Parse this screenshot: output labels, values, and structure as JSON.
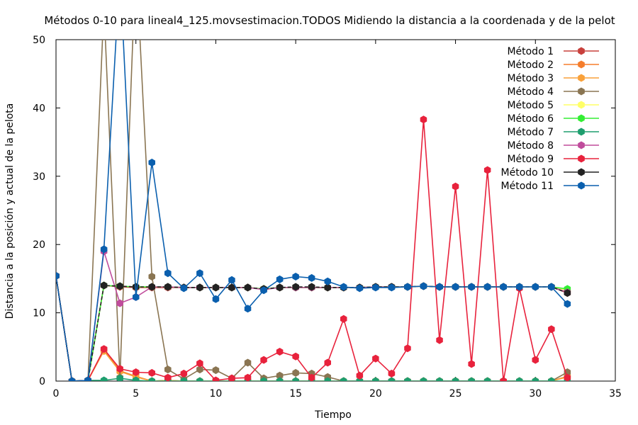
{
  "chart_data": {
    "type": "line",
    "title": "Métodos 0-10 para lineal4_125.movsestimacion.TODOS Midiendo la distancia a la coordenada y de la pelot",
    "xlabel": "Tiempo",
    "ylabel": "Distancia a la posición y actual de la pelota",
    "xlim": [
      0,
      35
    ],
    "ylim": [
      0,
      50
    ],
    "xticks": [
      0,
      5,
      10,
      15,
      20,
      25,
      30,
      35
    ],
    "yticks": [
      0,
      10,
      20,
      30,
      40,
      50
    ],
    "legend_position": "top-right",
    "grid": false,
    "series": [
      {
        "name": "Método 1",
        "color": "#c8403c",
        "x": [
          0,
          1,
          2,
          3,
          4,
          5,
          6,
          7,
          8,
          9,
          10,
          11,
          12,
          13,
          14,
          15,
          16,
          17,
          18,
          19,
          20,
          21,
          22,
          23,
          24,
          25,
          26,
          27,
          28,
          29,
          30,
          31,
          32
        ],
        "y": [
          15.4,
          0,
          0.1,
          14.0,
          13.8,
          13.7,
          13.7,
          13.7,
          13.7,
          13.7,
          13.7,
          13.7,
          13.7,
          13.5,
          13.7,
          13.7,
          13.7,
          13.7,
          13.7,
          13.7,
          13.8,
          13.8,
          13.8,
          13.9,
          13.8,
          13.8,
          13.8,
          13.8,
          13.8,
          13.8,
          13.8,
          13.8,
          12.9
        ]
      },
      {
        "name": "Método 2",
        "color": "#f57d2b",
        "x": [
          0,
          1,
          2,
          3,
          4,
          5,
          6,
          7,
          8,
          9,
          10,
          11,
          12,
          13,
          14,
          15,
          16,
          17,
          18,
          19,
          20,
          21,
          22,
          23,
          24,
          25,
          26,
          27,
          28,
          29,
          30,
          31,
          32
        ],
        "y": [
          15.4,
          0,
          0.1,
          4.6,
          1.5,
          0.7,
          0,
          0.1,
          0,
          0,
          0,
          0,
          0,
          0,
          0,
          0,
          0,
          0,
          0,
          0,
          0,
          0,
          0,
          0,
          0,
          0,
          0,
          0,
          0,
          0,
          0,
          0,
          0.7
        ]
      },
      {
        "name": "Método 3",
        "color": "#f9a13a",
        "x": [
          0,
          1,
          2,
          3,
          4,
          5,
          6,
          7,
          8,
          9,
          10,
          11,
          12,
          13,
          14,
          15,
          16,
          17,
          18,
          19,
          20,
          21,
          22,
          23,
          24,
          25,
          26,
          27,
          28,
          29,
          30,
          31,
          32
        ],
        "y": [
          15.4,
          0,
          0.1,
          4.4,
          1.4,
          0.6,
          0,
          0.1,
          0,
          0,
          0,
          0,
          0,
          0,
          0,
          0,
          0,
          0,
          0,
          0,
          0,
          0,
          0,
          0,
          0,
          0,
          0,
          0,
          0,
          0,
          0,
          0,
          0.6
        ]
      },
      {
        "name": "Método 4",
        "color": "#8a7552",
        "x": [
          0,
          1,
          2,
          3,
          4,
          5,
          6,
          7,
          8,
          9,
          10,
          11,
          12,
          13,
          14,
          15,
          16,
          17,
          18,
          19,
          20,
          21,
          22,
          23,
          24,
          25,
          26,
          27,
          28,
          29,
          30,
          31,
          32
        ],
        "y": [
          15.4,
          0,
          0.1,
          55,
          0.5,
          62,
          15.3,
          1.7,
          0.3,
          1.7,
          1.6,
          0.4,
          2.7,
          0.4,
          0.8,
          1.2,
          1.1,
          0.6,
          0,
          0,
          0,
          0,
          0,
          0,
          0,
          0,
          0,
          0,
          0,
          0,
          0,
          0,
          1.3
        ]
      },
      {
        "name": "Método 5",
        "color": "#ffff66",
        "x": [
          0,
          1,
          2,
          3,
          4,
          5,
          6,
          7,
          8,
          9,
          10,
          11,
          12,
          13,
          14,
          15,
          16,
          17,
          18,
          19,
          20,
          21,
          22,
          23,
          24,
          25,
          26,
          27,
          28,
          29,
          30,
          31,
          32
        ],
        "y": [
          15.4,
          0,
          0.1,
          14.0,
          13.9,
          13.8,
          13.8,
          13.8,
          13.7,
          13.7,
          13.7,
          13.7,
          13.7,
          13.5,
          13.7,
          13.7,
          13.7,
          13.7,
          13.7,
          13.7,
          13.8,
          13.8,
          13.8,
          13.9,
          13.8,
          13.8,
          13.8,
          13.8,
          13.8,
          13.8,
          13.8,
          13.8,
          13.3
        ]
      },
      {
        "name": "Método 6",
        "color": "#33ee33",
        "x": [
          0,
          1,
          2,
          3,
          4,
          5,
          6,
          7,
          8,
          9,
          10,
          11,
          12,
          13,
          14,
          15,
          16,
          17,
          18,
          19,
          20,
          21,
          22,
          23,
          24,
          25,
          26,
          27,
          28,
          29,
          30,
          31,
          32
        ],
        "y": [
          15.4,
          0,
          0.1,
          14.0,
          13.9,
          13.8,
          13.8,
          13.8,
          13.7,
          13.7,
          13.7,
          13.7,
          13.7,
          13.5,
          13.7,
          13.7,
          13.7,
          13.7,
          13.7,
          13.7,
          13.8,
          13.8,
          13.8,
          13.9,
          13.8,
          13.8,
          13.8,
          13.8,
          13.8,
          13.8,
          13.8,
          13.8,
          13.5
        ]
      },
      {
        "name": "Método 7",
        "color": "#1e9e6e",
        "x": [
          0,
          1,
          2,
          3,
          4,
          5,
          6,
          7,
          8,
          9,
          10,
          11,
          12,
          13,
          14,
          15,
          16,
          17,
          18,
          19,
          20,
          21,
          22,
          23,
          24,
          25,
          26,
          27,
          28,
          29,
          30,
          31,
          32
        ],
        "y": [
          15.4,
          0,
          0.1,
          0.1,
          0.4,
          0.1,
          0,
          0,
          0,
          0,
          0,
          0,
          0,
          0,
          0,
          0,
          0,
          0,
          0,
          0,
          0,
          0,
          0,
          0,
          0,
          0,
          0,
          0,
          0,
          0,
          0,
          0,
          0
        ]
      },
      {
        "name": "Método 8",
        "color": "#c04c9c",
        "x": [
          0,
          1,
          2,
          3,
          4,
          5,
          6,
          7,
          8,
          9,
          10,
          11,
          12,
          13,
          14,
          15,
          16,
          17,
          18,
          19,
          20,
          21,
          22,
          23,
          24,
          25,
          26,
          27,
          28,
          29,
          30,
          31,
          32
        ],
        "y": [
          15.4,
          0,
          0.1,
          19.0,
          11.4,
          12.3,
          13.8,
          13.8,
          13.7,
          13.7,
          13.7,
          13.7,
          13.7,
          13.4,
          13.7,
          13.7,
          13.7,
          13.7,
          13.7,
          13.7,
          13.8,
          13.8,
          13.8,
          13.9,
          13.8,
          13.8,
          13.8,
          13.8,
          13.8,
          13.8,
          13.8,
          13.8,
          13.0
        ]
      },
      {
        "name": "Método 9",
        "color": "#e8223c",
        "x": [
          0,
          1,
          2,
          3,
          4,
          5,
          6,
          7,
          8,
          9,
          10,
          11,
          12,
          13,
          14,
          15,
          16,
          17,
          18,
          19,
          20,
          21,
          22,
          23,
          24,
          25,
          26,
          27,
          28,
          29,
          30,
          31,
          32
        ],
        "y": [
          15.4,
          0,
          0.1,
          4.7,
          1.8,
          1.3,
          1.2,
          0.5,
          1.1,
          2.6,
          0.1,
          0.4,
          0.5,
          3.1,
          4.3,
          3.6,
          0.5,
          2.7,
          9.1,
          0.8,
          3.3,
          1.1,
          4.8,
          38.3,
          6.0,
          28.5,
          2.5,
          30.9,
          0,
          13.6,
          3.1,
          7.6,
          0.5
        ]
      },
      {
        "name": "Método 10",
        "color": "#222222",
        "x": [
          0,
          1,
          2,
          3,
          4,
          5,
          6,
          7,
          8,
          9,
          10,
          11,
          12,
          13,
          14,
          15,
          16,
          17,
          18,
          19,
          20,
          21,
          22,
          23,
          24,
          25,
          26,
          27,
          28,
          29,
          30,
          31,
          32
        ],
        "y": [
          15.4,
          0,
          0.1,
          14.0,
          13.9,
          13.8,
          13.8,
          13.8,
          13.7,
          13.7,
          13.7,
          13.7,
          13.7,
          13.5,
          13.7,
          13.8,
          13.8,
          13.7,
          13.7,
          13.7,
          13.8,
          13.8,
          13.8,
          13.9,
          13.8,
          13.8,
          13.8,
          13.8,
          13.8,
          13.8,
          13.8,
          13.8,
          12.9
        ]
      },
      {
        "name": "Método 11",
        "color": "#0a5fae",
        "x": [
          0,
          1,
          2,
          3,
          4,
          5,
          6,
          7,
          8,
          9,
          10,
          11,
          12,
          13,
          14,
          15,
          16,
          17,
          18,
          19,
          20,
          21,
          22,
          23,
          24,
          25,
          26,
          27,
          28,
          29,
          30,
          31,
          32
        ],
        "y": [
          15.4,
          0,
          0.1,
          19.3,
          60,
          12.3,
          32.0,
          15.8,
          13.6,
          15.8,
          12.0,
          14.8,
          10.6,
          13.3,
          14.9,
          15.3,
          15.1,
          14.6,
          13.8,
          13.6,
          13.7,
          13.7,
          13.8,
          13.9,
          13.8,
          13.8,
          13.8,
          13.8,
          13.8,
          13.8,
          13.8,
          13.8,
          11.3
        ]
      }
    ]
  }
}
